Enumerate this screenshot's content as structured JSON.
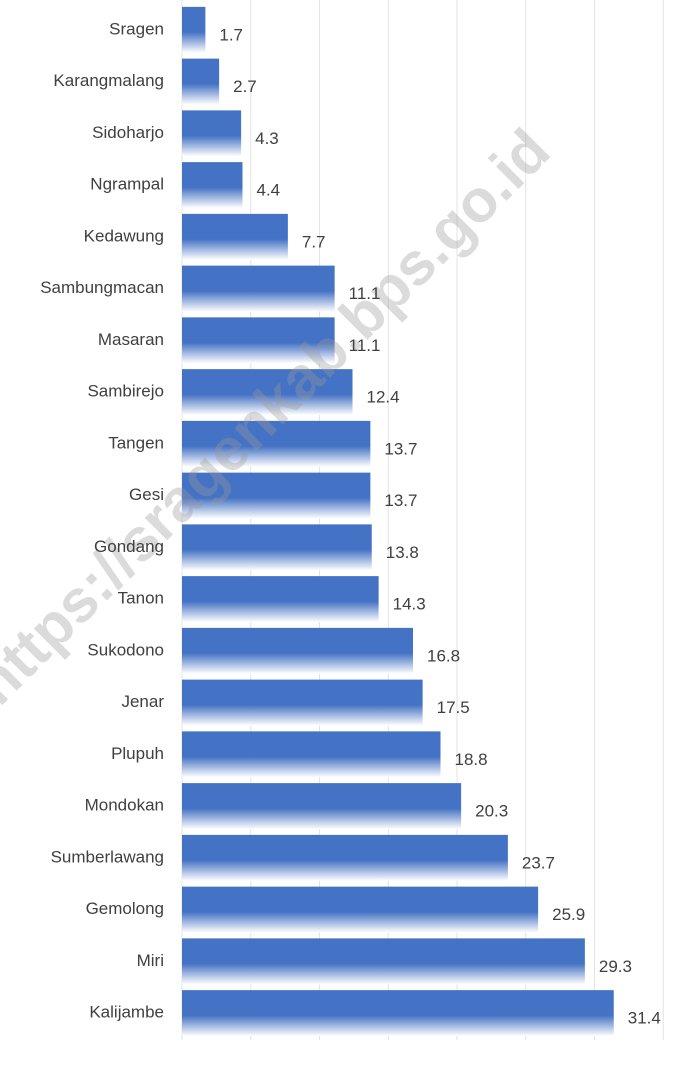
{
  "chart_data": {
    "type": "bar",
    "orientation": "horizontal",
    "categories": [
      "Sragen",
      "Karangmalang",
      "Sidoharjo",
      "Ngrampal",
      "Kedawung",
      "Sambungmacan",
      "Masaran",
      "Sambirejo",
      "Tangen",
      "Gesi",
      "Gondang",
      "Tanon",
      "Sukodono",
      "Jenar",
      "Plupuh",
      "Mondokan",
      "Sumberlawang",
      "Gemolong",
      "Miri",
      "Kalijambe"
    ],
    "values": [
      1.7,
      2.7,
      4.3,
      4.4,
      7.7,
      11.1,
      11.1,
      12.4,
      13.7,
      13.7,
      13.8,
      14.3,
      16.8,
      17.5,
      18.8,
      20.3,
      23.7,
      25.9,
      29.3,
      31.4
    ],
    "color": "#4472c4",
    "xlim": [
      0,
      35
    ],
    "xticks": [
      0,
      5,
      10,
      15,
      20,
      25,
      30,
      35
    ],
    "grid": true,
    "watermark": "https://sragenkab.bps.go.id"
  }
}
